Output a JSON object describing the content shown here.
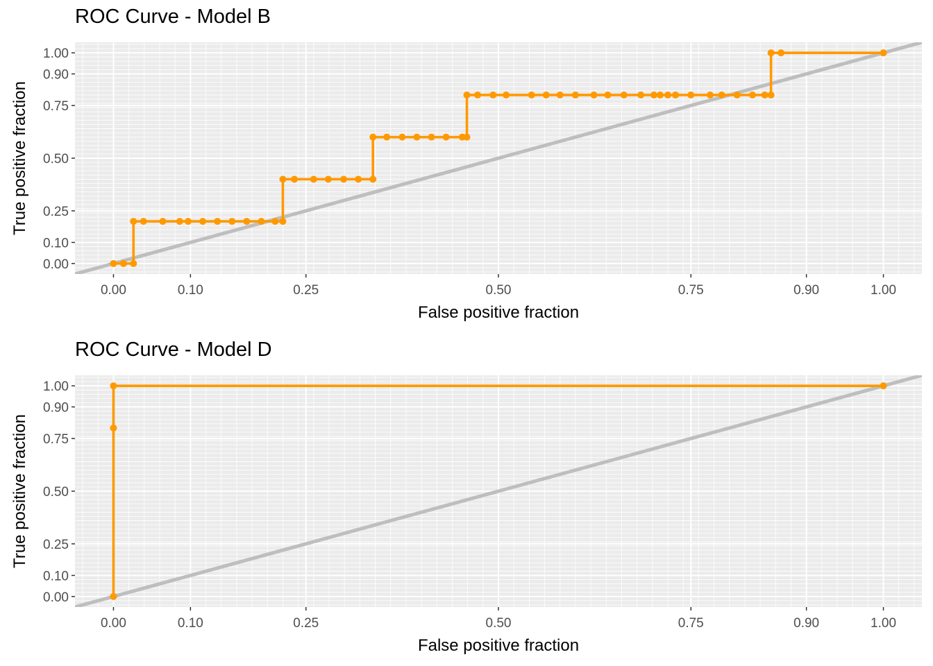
{
  "chart_data": [
    {
      "type": "line",
      "title": "ROC Curve - Model B",
      "xlabel": "False positive fraction",
      "ylabel": "True positive fraction",
      "xlim": [
        -0.05,
        1.05
      ],
      "ylim": [
        -0.05,
        1.05
      ],
      "x_ticks": [
        0.0,
        0.1,
        0.25,
        0.5,
        0.75,
        0.9,
        1.0
      ],
      "x_tick_labels": [
        "0.00",
        "0.10",
        "0.25",
        "0.50",
        "0.75",
        "0.90",
        "1.00"
      ],
      "y_ticks": [
        0.0,
        0.1,
        0.25,
        0.5,
        0.75,
        0.9,
        1.0
      ],
      "y_tick_labels": [
        "0.00",
        "0.10",
        "0.25",
        "0.50",
        "0.75",
        "0.90",
        "1.00"
      ],
      "grid": true,
      "colors": {
        "curve": "#FF9900",
        "diagonal": "#BEBEBE",
        "panel": "#EBEBEB",
        "grid": "#FFFFFF"
      },
      "series": [
        {
          "x": [
            0.0,
            0.013,
            0.026,
            0.026,
            0.039,
            0.064,
            0.086,
            0.097,
            0.116,
            0.135,
            0.154,
            0.173,
            0.192,
            0.21,
            0.22,
            0.22,
            0.235,
            0.26,
            0.279,
            0.299,
            0.318,
            0.337,
            0.337,
            0.355,
            0.375,
            0.394,
            0.413,
            0.432,
            0.453,
            0.459,
            0.459,
            0.473,
            0.493,
            0.51,
            0.543,
            0.562,
            0.58,
            0.6,
            0.624,
            0.642,
            0.663,
            0.685,
            0.702,
            0.71,
            0.72,
            0.73,
            0.75,
            0.775,
            0.79,
            0.81,
            0.83,
            0.846,
            0.854,
            0.854,
            0.867,
            1.0
          ],
          "y": [
            0.0,
            0.0,
            0.0,
            0.2,
            0.2,
            0.2,
            0.2,
            0.2,
            0.2,
            0.2,
            0.2,
            0.2,
            0.2,
            0.2,
            0.2,
            0.4,
            0.4,
            0.4,
            0.4,
            0.4,
            0.4,
            0.4,
            0.6,
            0.6,
            0.6,
            0.6,
            0.6,
            0.6,
            0.6,
            0.6,
            0.8,
            0.8,
            0.8,
            0.8,
            0.8,
            0.8,
            0.8,
            0.8,
            0.8,
            0.8,
            0.8,
            0.8,
            0.8,
            0.8,
            0.8,
            0.8,
            0.8,
            0.8,
            0.8,
            0.8,
            0.8,
            0.8,
            0.8,
            1.0,
            1.0,
            1.0
          ]
        }
      ]
    },
    {
      "type": "line",
      "title": "ROC Curve - Model D",
      "xlabel": "False positive fraction",
      "ylabel": "True positive fraction",
      "xlim": [
        -0.05,
        1.05
      ],
      "ylim": [
        -0.05,
        1.05
      ],
      "x_ticks": [
        0.0,
        0.1,
        0.25,
        0.5,
        0.75,
        0.9,
        1.0
      ],
      "x_tick_labels": [
        "0.00",
        "0.10",
        "0.25",
        "0.50",
        "0.75",
        "0.90",
        "1.00"
      ],
      "y_ticks": [
        0.0,
        0.1,
        0.25,
        0.5,
        0.75,
        0.9,
        1.0
      ],
      "y_tick_labels": [
        "0.00",
        "0.10",
        "0.25",
        "0.50",
        "0.75",
        "0.90",
        "1.00"
      ],
      "grid": true,
      "colors": {
        "curve": "#FF9900",
        "diagonal": "#BEBEBE",
        "panel": "#EBEBEB",
        "grid": "#FFFFFF"
      },
      "series": [
        {
          "x": [
            0.0,
            0.0,
            0.0,
            1.0
          ],
          "y": [
            0.0,
            0.8,
            1.0,
            1.0
          ]
        }
      ]
    }
  ]
}
